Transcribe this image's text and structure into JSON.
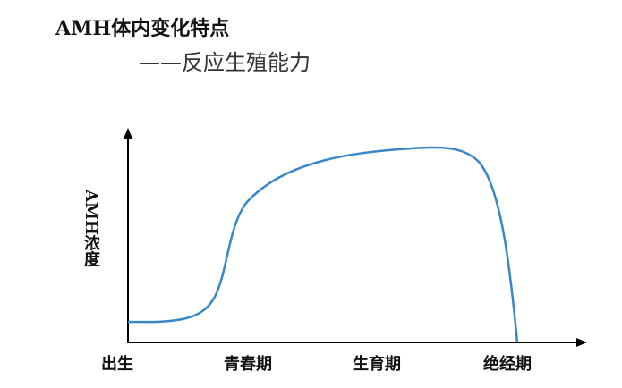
{
  "title": "AMH体内变化特点",
  "subtitle": "——反应生殖能力",
  "y_axis_label": "AMH浓度",
  "x_labels": [
    "出生",
    "青春期",
    "生育期",
    "绝经期"
  ]
}
